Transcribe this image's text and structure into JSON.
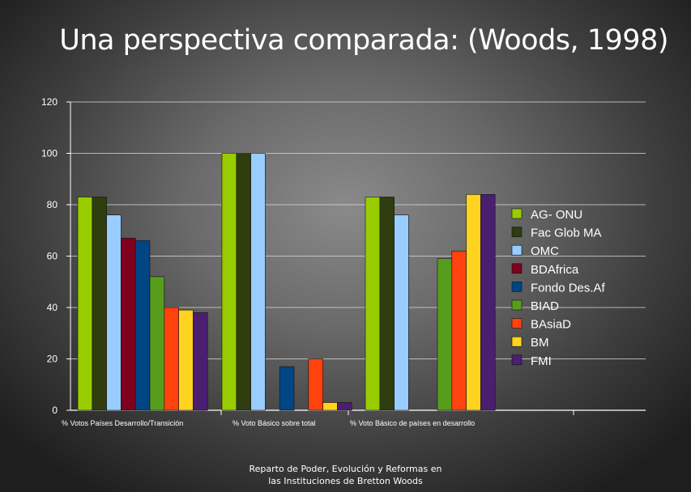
{
  "slide": {
    "title": "Una perspectiva comparada: (Woods, 1998)",
    "footer_line1": "Reparto de Poder, Evolución y Reformas en",
    "footer_line2": "las Instituciones  de Bretton Woods"
  },
  "chart_data": {
    "type": "bar",
    "title": "",
    "xlabel": "",
    "ylabel": "",
    "ylim": [
      0,
      120
    ],
    "yticks": [
      0,
      20,
      40,
      60,
      80,
      100,
      120
    ],
    "grid": true,
    "legend_position": "right",
    "categories": [
      "% Votos Países Desarrollo/Transición",
      "% Voto Básico sobre total",
      "% Voto Básico de países en desarrollo"
    ],
    "series": [
      {
        "name": "AG- ONU",
        "color": "#99cc00",
        "values": [
          83,
          100,
          83
        ]
      },
      {
        "name": "Fac Glob MA",
        "color": "#2f3d0f",
        "values": [
          83,
          100,
          83
        ]
      },
      {
        "name": "OMC",
        "color": "#99ccff",
        "values": [
          76,
          100,
          76
        ]
      },
      {
        "name": "BDAfrica",
        "color": "#800020",
        "values": [
          67,
          null,
          null
        ]
      },
      {
        "name": "Fondo Des.Af",
        "color": "#004586",
        "values": [
          66,
          17,
          null
        ]
      },
      {
        "name": "BIAD",
        "color": "#579d1c",
        "values": [
          52,
          null,
          59
        ]
      },
      {
        "name": "BAsiaD",
        "color": "#ff420e",
        "values": [
          40,
          20,
          62
        ]
      },
      {
        "name": "BM",
        "color": "#ffd320",
        "values": [
          39,
          3,
          84
        ]
      },
      {
        "name": "FMI",
        "color": "#4b1f6f",
        "values": [
          38,
          3,
          84
        ]
      }
    ]
  }
}
